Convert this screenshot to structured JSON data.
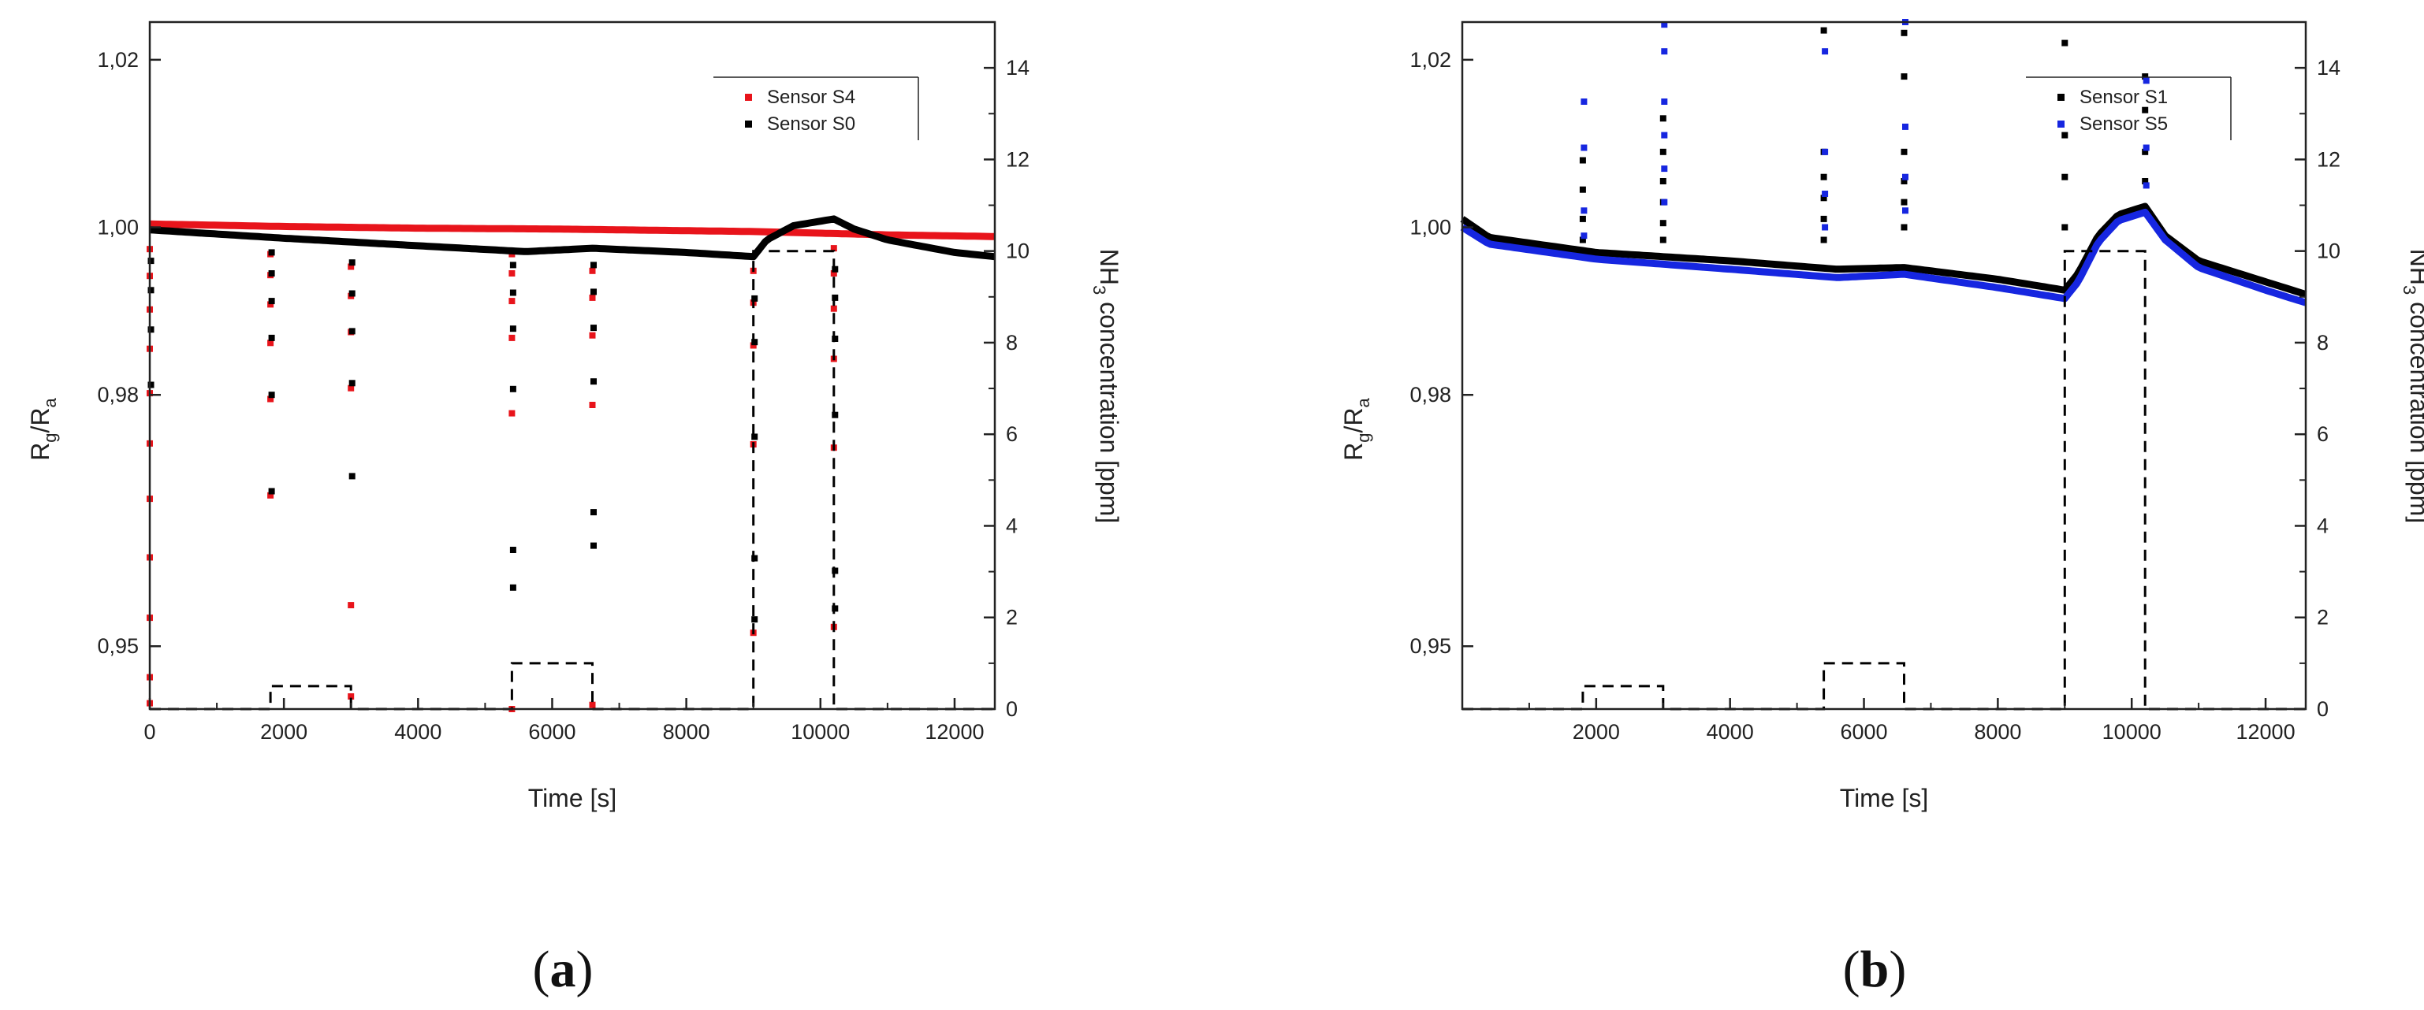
{
  "panels": [
    {
      "label_open": "(",
      "label_letter": "a",
      "label_close": ")"
    },
    {
      "label_open": "(",
      "label_letter": "b",
      "label_close": ")"
    }
  ],
  "chart_data": [
    {
      "type": "scatter",
      "panel": "a",
      "xlabel": "Time [s]",
      "ylabel": "Rg/Ra",
      "ylabel_main": "R",
      "ylabel_sub1": "g",
      "ylabel_mid": "/R",
      "ylabel_sub2": "a",
      "y2label_pre": "NH",
      "y2label_sub": "3",
      "y2label_post": " concentration [ppm]",
      "xlim": [
        0,
        12600
      ],
      "ylim": [
        0.9425,
        1.0245
      ],
      "y2lim": [
        0,
        15
      ],
      "x_ticks": [
        0,
        2000,
        4000,
        6000,
        8000,
        10000,
        12000
      ],
      "x_tick_labels": [
        "0",
        "2000",
        "4000",
        "6000",
        "8000",
        "10000",
        "12000"
      ],
      "y_ticks": [
        0.95,
        0.98,
        1.0,
        1.02
      ],
      "y_tick_labels": [
        "0,95",
        "0,98",
        "1,00",
        "1,02"
      ],
      "y2_ticks": [
        0,
        2,
        4,
        6,
        8,
        10,
        12,
        14
      ],
      "y2_tick_labels": [
        "0",
        "2",
        "4",
        "6",
        "8",
        "10",
        "12",
        "14"
      ],
      "legend_position": "top-right",
      "series": [
        {
          "name": "Sensor S4",
          "color": "#e8141b",
          "baseline": [
            [
              0,
              1.0004
            ],
            [
              2000,
              1.0001
            ],
            [
              4000,
              0.9999
            ],
            [
              6000,
              0.9998
            ],
            [
              8000,
              0.9996
            ],
            [
              9000,
              0.9995
            ],
            [
              10000,
              0.9993
            ],
            [
              11000,
              0.9991
            ],
            [
              12600,
              0.9989
            ]
          ],
          "spikes": [
            {
              "x": 0,
              "values": [
                0.9432,
                0.9463,
                0.9534,
                0.9606,
                0.9676,
                0.9742,
                0.9802,
                0.9855,
                0.9902,
                0.9942,
                0.9974
              ]
            },
            {
              "x": 1800,
              "values": [
                0.968,
                0.9795,
                0.9862,
                0.9908,
                0.9943,
                0.9968
              ]
            },
            {
              "x": 3000,
              "values": [
                0.944,
                0.9549,
                0.9808,
                0.9875,
                0.9918,
                0.9953
              ]
            },
            {
              "x": 5400,
              "values": [
                0.9425,
                0.9778,
                0.9868,
                0.9912,
                0.9945,
                0.9968
              ]
            },
            {
              "x": 6600,
              "values": [
                0.943,
                0.9788,
                0.9871,
                0.9916,
                0.9948
              ]
            },
            {
              "x": 9000,
              "values": [
                0.9516,
                0.9741,
                0.9859,
                0.991,
                0.9948
              ]
            },
            {
              "x": 10200,
              "values": [
                0.9523,
                0.9737,
                0.9843,
                0.9903,
                0.9945,
                0.9975
              ]
            }
          ]
        },
        {
          "name": "Sensor S0",
          "color": "#000000",
          "baseline": [
            [
              0,
              0.9997
            ],
            [
              2000,
              0.9987
            ],
            [
              4000,
              0.9978
            ],
            [
              5600,
              0.9971
            ],
            [
              6600,
              0.9975
            ],
            [
              8000,
              0.997
            ],
            [
              9000,
              0.9965
            ],
            [
              9200,
              0.9985
            ],
            [
              9600,
              1.0002
            ],
            [
              10200,
              1.001
            ],
            [
              10500,
              0.9998
            ],
            [
              11000,
              0.9985
            ],
            [
              12000,
              0.997
            ],
            [
              12600,
              0.9965
            ]
          ],
          "spikes": [
            {
              "x": 0,
              "values": [
                0.9812,
                0.9878,
                0.9925,
                0.996
              ]
            },
            {
              "x": 1800,
              "values": [
                0.9685,
                0.98,
                0.9868,
                0.9912,
                0.9945,
                0.997
              ]
            },
            {
              "x": 3000,
              "values": [
                0.9703,
                0.9814,
                0.9876,
                0.9921,
                0.9958
              ]
            },
            {
              "x": 5400,
              "values": [
                0.957,
                0.9615,
                0.9807,
                0.9879,
                0.9922,
                0.9955
              ]
            },
            {
              "x": 6600,
              "values": [
                0.962,
                0.966,
                0.9816,
                0.988,
                0.9923,
                0.9955
              ]
            },
            {
              "x": 9000,
              "values": [
                0.9532,
                0.9605,
                0.975,
                0.9863,
                0.9915
              ]
            },
            {
              "x": 10200,
              "values": [
                0.9545,
                0.959,
                0.9776,
                0.9867,
                0.9916,
                0.995
              ]
            }
          ]
        },
        {
          "name": "NH3 concentration",
          "axis": "y2",
          "style": "dashed",
          "color": "#000000",
          "steps": [
            [
              0,
              0
            ],
            [
              1800,
              0
            ],
            [
              1800,
              0.5
            ],
            [
              3000,
              0.5
            ],
            [
              3000,
              0
            ],
            [
              5400,
              0
            ],
            [
              5400,
              1
            ],
            [
              6600,
              1
            ],
            [
              6600,
              0
            ],
            [
              9000,
              0
            ],
            [
              9000,
              10
            ],
            [
              10200,
              10
            ],
            [
              10200,
              0
            ],
            [
              12600,
              0
            ]
          ]
        }
      ]
    },
    {
      "type": "scatter",
      "panel": "b",
      "xlabel": "Time [s]",
      "ylabel": "Rg/Ra",
      "ylabel_main": "R",
      "ylabel_sub1": "g",
      "ylabel_mid": "/R",
      "ylabel_sub2": "a",
      "y2label_pre": "NH",
      "y2label_sub": "3",
      "y2label_post": " concentration [ppm]",
      "xlim": [
        0,
        12600
      ],
      "ylim": [
        0.9425,
        1.0245
      ],
      "y2lim": [
        0,
        15
      ],
      "x_ticks": [
        2000,
        4000,
        6000,
        8000,
        10000,
        12000
      ],
      "x_tick_labels": [
        "2000",
        "4000",
        "6000",
        "8000",
        "10000",
        "12000"
      ],
      "y_ticks": [
        0.95,
        0.98,
        1.0,
        1.02
      ],
      "y_tick_labels": [
        "0,95",
        "0,98",
        "1,00",
        "1,02"
      ],
      "y2_ticks": [
        0,
        2,
        4,
        6,
        8,
        10,
        12,
        14
      ],
      "y2_tick_labels": [
        "0",
        "2",
        "4",
        "6",
        "8",
        "10",
        "12",
        "14"
      ],
      "legend_position": "top-right",
      "series": [
        {
          "name": "Sensor S1",
          "color": "#000000",
          "baseline": [
            [
              0,
              1.001
            ],
            [
              400,
              0.9988
            ],
            [
              2000,
              0.997
            ],
            [
              4000,
              0.996
            ],
            [
              5600,
              0.995
            ],
            [
              6600,
              0.9952
            ],
            [
              8000,
              0.9938
            ],
            [
              9000,
              0.9925
            ],
            [
              9200,
              0.9945
            ],
            [
              9500,
              0.999
            ],
            [
              9800,
              1.0015
            ],
            [
              10200,
              1.0025
            ],
            [
              10500,
              0.999
            ],
            [
              11000,
              0.996
            ],
            [
              12000,
              0.9935
            ],
            [
              12600,
              0.992
            ]
          ],
          "spikes": [
            {
              "x": 1800,
              "values": [
                1.008,
                1.0045,
                1.001,
                0.9985
              ]
            },
            {
              "x": 3000,
              "values": [
                1.013,
                1.009,
                1.0055,
                1.003,
                1.0005,
                0.9985
              ]
            },
            {
              "x": 5400,
              "values": [
                1.0235,
                1.009,
                1.006,
                1.0035,
                1.001,
                0.9985
              ]
            },
            {
              "x": 6600,
              "values": [
                1.0232,
                1.018,
                1.009,
                1.0055,
                1.003,
                1.0
              ]
            },
            {
              "x": 9000,
              "values": [
                1.022,
                1.011,
                1.006,
                1.0
              ]
            },
            {
              "x": 10200,
              "values": [
                1.018,
                1.014,
                1.009,
                1.0055
              ]
            }
          ]
        },
        {
          "name": "Sensor S5",
          "color": "#1626e0",
          "baseline": [
            [
              0,
              1.0
            ],
            [
              400,
              0.998
            ],
            [
              2000,
              0.9962
            ],
            [
              4000,
              0.995
            ],
            [
              5600,
              0.994
            ],
            [
              6600,
              0.9944
            ],
            [
              8000,
              0.9928
            ],
            [
              9000,
              0.9915
            ],
            [
              9200,
              0.9935
            ],
            [
              9500,
              0.9982
            ],
            [
              9800,
              1.0008
            ],
            [
              10200,
              1.0018
            ],
            [
              10500,
              0.9985
            ],
            [
              11000,
              0.9952
            ],
            [
              12000,
              0.9925
            ],
            [
              12600,
              0.991
            ]
          ],
          "spikes": [
            {
              "x": 1800,
              "values": [
                1.015,
                1.0095,
                1.002,
                0.999
              ]
            },
            {
              "x": 3000,
              "values": [
                1.0242,
                1.021,
                1.015,
                1.011,
                1.007,
                1.003
              ]
            },
            {
              "x": 5400,
              "values": [
                1.021,
                1.009,
                1.004,
                1.0
              ]
            },
            {
              "x": 6600,
              "values": [
                1.0245,
                1.012,
                1.006,
                1.002
              ]
            },
            {
              "x": 10200,
              "values": [
                1.0175,
                1.0095,
                1.005
              ]
            }
          ]
        },
        {
          "name": "NH3 concentration",
          "axis": "y2",
          "style": "dashed",
          "color": "#000000",
          "steps": [
            [
              0,
              0
            ],
            [
              1800,
              0
            ],
            [
              1800,
              0.5
            ],
            [
              3000,
              0.5
            ],
            [
              3000,
              0
            ],
            [
              5400,
              0
            ],
            [
              5400,
              1
            ],
            [
              6600,
              1
            ],
            [
              6600,
              0
            ],
            [
              9000,
              0
            ],
            [
              9000,
              10
            ],
            [
              10200,
              10
            ],
            [
              10200,
              0
            ],
            [
              12600,
              0
            ]
          ]
        }
      ]
    }
  ]
}
